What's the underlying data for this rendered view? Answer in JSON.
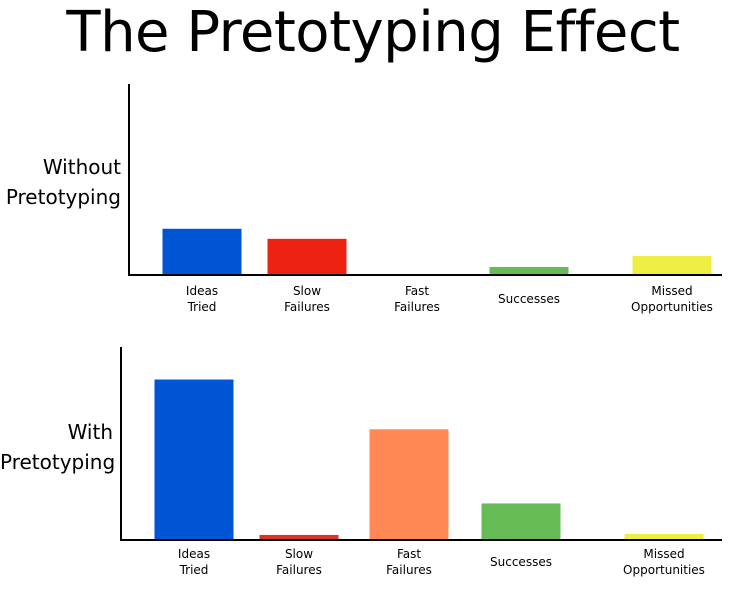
{
  "title": "The Pretotyping Effect",
  "chart_data": [
    {
      "type": "bar",
      "ylabel": [
        "Without",
        "Pretotyping"
      ],
      "categories": [
        [
          "Ideas",
          "Tried"
        ],
        [
          "Slow",
          "Failures"
        ],
        [
          "Fast",
          "Failures"
        ],
        [
          "Successes"
        ],
        [
          "Missed",
          "Opportunities"
        ]
      ],
      "values": [
        45,
        35,
        0,
        7,
        18
      ],
      "colors": [
        "#0055d4",
        "#ee2211",
        "#ff8855",
        "#66bb55",
        "#eeee44"
      ],
      "ylim": [
        0,
        190
      ],
      "grid": false
    },
    {
      "type": "bar",
      "ylabel": [
        "With",
        "Pretotyping"
      ],
      "categories": [
        [
          "Ideas",
          "Tried"
        ],
        [
          "Slow",
          "Failures"
        ],
        [
          "Fast",
          "Failures"
        ],
        [
          "Successes"
        ],
        [
          "Missed",
          "Opportunities"
        ]
      ],
      "values": [
        157,
        4,
        108,
        35,
        5
      ],
      "colors": [
        "#0055d4",
        "#dd3322",
        "#ff8855",
        "#66bb55",
        "#eeee44"
      ],
      "ylim": [
        0,
        190
      ],
      "grid": false
    }
  ]
}
